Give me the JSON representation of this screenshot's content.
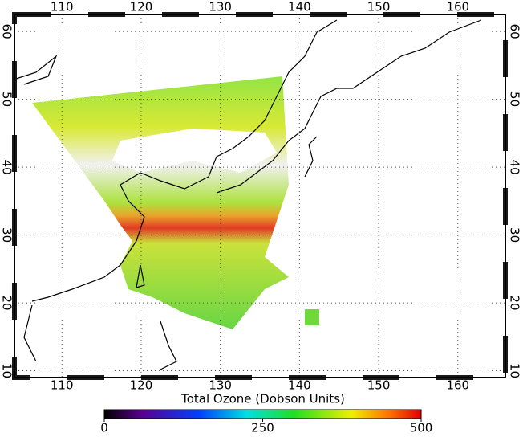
{
  "map": {
    "lonlim": [
      104,
      166
    ],
    "latlim": [
      9,
      62.5
    ],
    "lon_ticks": [
      110,
      120,
      130,
      140,
      150,
      160
    ],
    "lat_ticks": [
      10,
      20,
      30,
      40,
      50,
      60
    ],
    "grid": true,
    "colorbar": {
      "title": "Total Ozone (Dobson Units)",
      "lim": [
        0,
        500
      ],
      "ticks": [
        0,
        250,
        500
      ]
    }
  }
}
